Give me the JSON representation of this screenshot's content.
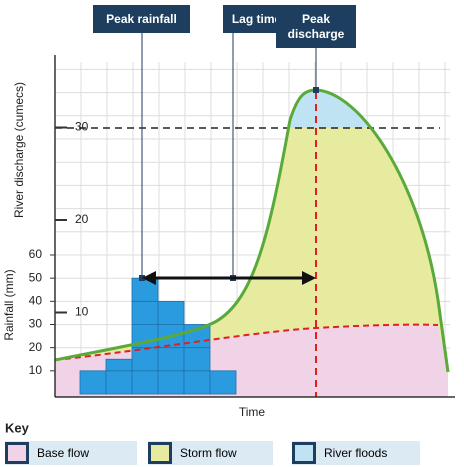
{
  "chart_data": {
    "type": "hydrograph",
    "annotations": [
      "Peak rainfall",
      "Lag time",
      "Peak discharge"
    ],
    "x_label": "Time",
    "y_label": "Rainfall (mm)",
    "y2_label": "River discharge (cumecs)",
    "categories": [
      null,
      null,
      null,
      null,
      null,
      null
    ],
    "values": [
      10,
      15,
      50,
      40,
      30,
      10
    ],
    "color": "#2b9be0",
    "ylim": [
      0,
      60
    ],
    "yticks": [
      10,
      20,
      30,
      40,
      50,
      60
    ],
    "y2lim": [
      0,
      38
    ],
    "y2ticks": [
      10,
      20,
      30
    ],
    "grid": true,
    "key_title": "Key",
    "legend": [
      {
        "name": "Base flow",
        "color": "#f0d3e6"
      },
      {
        "name": "Storm flow",
        "color": "#e6eba0"
      },
      {
        "name": "River floods",
        "color": "#bfe3f3"
      }
    ]
  }
}
